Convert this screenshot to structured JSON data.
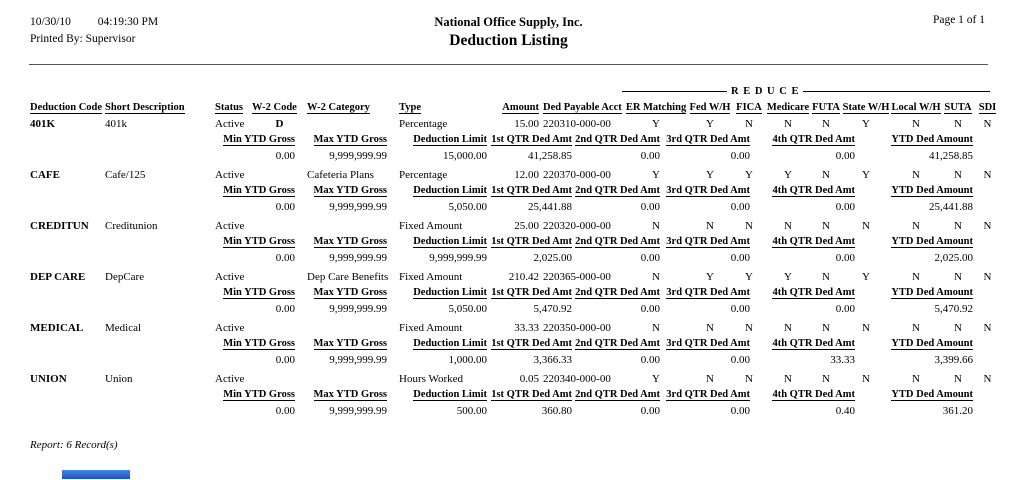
{
  "header": {
    "date": "10/30/10",
    "time": "04:19:30 PM",
    "printed_by_label": "Printed By: Supervisor",
    "company": "National Office Supply, Inc.",
    "report_title": "Deduction Listing",
    "page": "Page 1 of 1"
  },
  "table": {
    "group_header": "R E D U C E",
    "columns": [
      "Deduction Code",
      "Short Description",
      "Status",
      "W-2 Code",
      "W-2 Category",
      "Type",
      "Amount",
      "Ded Payable Acct",
      "ER Matching",
      "Fed W/H",
      "FICA",
      "Medicare",
      "FUTA",
      "State W/H",
      "Local W/H",
      "SUTA",
      "SDI"
    ],
    "sub_columns": [
      "Min YTD Gross",
      "Max YTD Gross",
      "Deduction Limit",
      "1st QTR Ded Amt",
      "2nd QTR Ded Amt",
      "3rd QTR Ded Amt",
      "4th QTR Ded Amt",
      "YTD Ded Amount"
    ],
    "rows": [
      {
        "code": "401K",
        "description": "401k",
        "status": "Active",
        "w2_code": "D",
        "w2_category": "",
        "type": "Percentage",
        "amount": "15.00",
        "ded_payable_acct": "220310-000-00",
        "flags": [
          "Y",
          "Y",
          "N",
          "N",
          "N",
          "Y",
          "N",
          "N",
          "N"
        ],
        "min_ytd_gross": "0.00",
        "max_ytd_gross": "9,999,999.99",
        "deduction_limit": "15,000.00",
        "qtr1": "41,258.85",
        "qtr2": "0.00",
        "qtr3": "0.00",
        "qtr4": "0.00",
        "ytd": "41,258.85"
      },
      {
        "code": "CAFE",
        "description": "Cafe/125",
        "status": "Active",
        "w2_code": "",
        "w2_category": "Cafeteria Plans",
        "type": "Percentage",
        "amount": "12.00",
        "ded_payable_acct": "220370-000-00",
        "flags": [
          "Y",
          "Y",
          "Y",
          "Y",
          "N",
          "Y",
          "N",
          "N",
          "N"
        ],
        "min_ytd_gross": "0.00",
        "max_ytd_gross": "9,999,999.99",
        "deduction_limit": "5,050.00",
        "qtr1": "25,441.88",
        "qtr2": "0.00",
        "qtr3": "0.00",
        "qtr4": "0.00",
        "ytd": "25,441.88"
      },
      {
        "code": "CREDITUN",
        "description": "Creditunion",
        "status": "Active",
        "w2_code": "",
        "w2_category": "",
        "type": "Fixed Amount",
        "amount": "25.00",
        "ded_payable_acct": "220320-000-00",
        "flags": [
          "N",
          "N",
          "N",
          "N",
          "N",
          "N",
          "N",
          "N",
          "N"
        ],
        "min_ytd_gross": "0.00",
        "max_ytd_gross": "9,999,999.99",
        "deduction_limit": "9,999,999.99",
        "qtr1": "2,025.00",
        "qtr2": "0.00",
        "qtr3": "0.00",
        "qtr4": "0.00",
        "ytd": "2,025.00"
      },
      {
        "code": "DEP CARE",
        "description": "DepCare",
        "status": "Active",
        "w2_code": "",
        "w2_category": "Dep Care Benefits",
        "type": "Fixed Amount",
        "amount": "210.42",
        "ded_payable_acct": "220365-000-00",
        "flags": [
          "N",
          "Y",
          "Y",
          "Y",
          "N",
          "Y",
          "N",
          "N",
          "N"
        ],
        "min_ytd_gross": "0.00",
        "max_ytd_gross": "9,999,999.99",
        "deduction_limit": "5,050.00",
        "qtr1": "5,470.92",
        "qtr2": "0.00",
        "qtr3": "0.00",
        "qtr4": "0.00",
        "ytd": "5,470.92"
      },
      {
        "code": "MEDICAL",
        "description": "Medical",
        "status": "Active",
        "w2_code": "",
        "w2_category": "",
        "type": "Fixed Amount",
        "amount": "33.33",
        "ded_payable_acct": "220350-000-00",
        "flags": [
          "N",
          "N",
          "N",
          "N",
          "N",
          "N",
          "N",
          "N",
          "N"
        ],
        "min_ytd_gross": "0.00",
        "max_ytd_gross": "9,999,999.99",
        "deduction_limit": "1,000.00",
        "qtr1": "3,366.33",
        "qtr2": "0.00",
        "qtr3": "0.00",
        "qtr4": "33.33",
        "ytd": "3,399.66"
      },
      {
        "code": "UNION",
        "description": "Union",
        "status": "Active",
        "w2_code": "",
        "w2_category": "",
        "type": "Hours Worked",
        "amount": "0.05",
        "ded_payable_acct": "220340-000-00",
        "flags": [
          "Y",
          "N",
          "N",
          "N",
          "N",
          "N",
          "N",
          "N",
          "N"
        ],
        "min_ytd_gross": "0.00",
        "max_ytd_gross": "9,999,999.99",
        "deduction_limit": "500.00",
        "qtr1": "360.80",
        "qtr2": "0.00",
        "qtr3": "0.00",
        "qtr4": "0.40",
        "ytd": "361.20"
      }
    ]
  },
  "footer": {
    "summary": "Report: 6 Record(s)"
  },
  "colors": {
    "bottom_bar_accent": "#2a5fd4"
  }
}
